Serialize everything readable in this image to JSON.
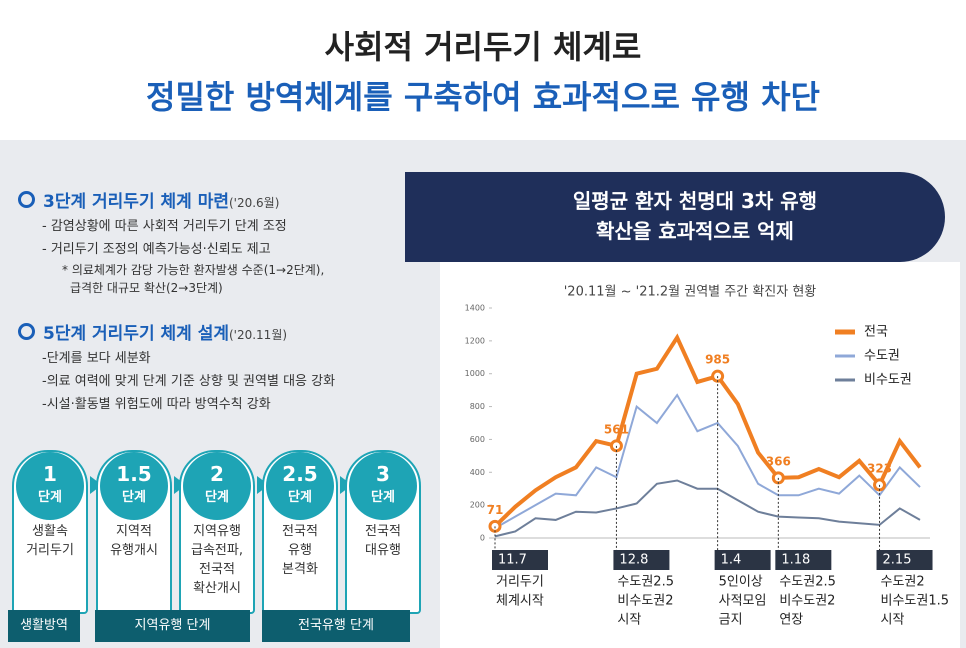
{
  "header": {
    "title": "사회적 거리두기 체계로",
    "subtitle": "정밀한 방역체계를 구축하여 효과적으로 유행 차단"
  },
  "sections": [
    {
      "heading": "3단계 거리두기 체계 마련",
      "date": "('20.6월)",
      "items": [
        "-  감염상황에 따른 사회적 거리두기 단계 조정",
        "-  거리두기 조정의 예측가능성·신뢰도 제고"
      ],
      "notes": [
        "* 의료체계가 감당 가능한 환자발생 수준(1→2단계),",
        "급격한 대규모 확산(2→3단계)"
      ]
    },
    {
      "heading": "5단계 거리두기 체계 설계",
      "date": "('20.11월)",
      "items": [
        "-단계를 보다 세분화",
        "-의료 여력에 맞게 단계 기준 상향 및 권역별 대응 강화",
        "-시설·활동별 위험도에 따라 방역수칙 강화"
      ],
      "notes": []
    }
  ],
  "steps": [
    {
      "level": "1",
      "unit": "단계",
      "desc": [
        "생활속",
        "거리두기"
      ]
    },
    {
      "level": "1.5",
      "unit": "단계",
      "desc": [
        "지역적",
        "유행개시"
      ]
    },
    {
      "level": "2",
      "unit": "단계",
      "desc": [
        "지역유행",
        "급속전파,",
        "전국적",
        "확산개시"
      ]
    },
    {
      "level": "2.5",
      "unit": "단계",
      "desc": [
        "전국적",
        "유행",
        "본격화"
      ]
    },
    {
      "level": "3",
      "unit": "단계",
      "desc": [
        "전국적",
        "대유행"
      ]
    }
  ],
  "phases": [
    "생활방역",
    "지역유행 단계",
    "전국유행 단계"
  ],
  "banner": [
    "일평균 환자 천명대 3차 유행",
    "확산을 효과적으로 억제"
  ],
  "chart_data": {
    "type": "line",
    "title": "'20.11월 ~ '21.2월 권역별 주간 확진자 현황",
    "categories": [
      "11.7",
      null,
      null,
      null,
      null,
      null,
      "12.8",
      null,
      null,
      null,
      null,
      "1.4",
      null,
      null,
      "1.18",
      null,
      null,
      null,
      null,
      "2.15",
      null,
      null
    ],
    "event_labels": [
      [
        "거리두기",
        "체계시작"
      ],
      null,
      null,
      null,
      null,
      null,
      [
        "수도권2.5",
        "비수도권2",
        "시작"
      ],
      null,
      null,
      null,
      null,
      [
        "5인이상",
        "사적모임",
        "금지"
      ],
      null,
      null,
      [
        "수도권2.5",
        "비수도권2",
        "연장"
      ],
      null,
      null,
      null,
      null,
      [
        "수도권2",
        "비수도권1.5",
        "시작"
      ],
      null,
      null
    ],
    "series": [
      {
        "name": "전국",
        "color": "#f07f22",
        "values": [
          71,
          190,
          290,
          370,
          430,
          590,
          561,
          1000,
          1030,
          1220,
          950,
          985,
          815,
          520,
          366,
          370,
          420,
          370,
          470,
          323,
          590,
          430
        ]
      },
      {
        "name": "수도권",
        "color": "#8fa8d8",
        "values": [
          60,
          130,
          200,
          270,
          260,
          430,
          370,
          800,
          700,
          870,
          650,
          700,
          560,
          330,
          260,
          260,
          300,
          270,
          380,
          260,
          430,
          310
        ]
      },
      {
        "name": "비수도권",
        "color": "#6e7f9a",
        "values": [
          10,
          40,
          120,
          110,
          160,
          155,
          180,
          210,
          330,
          350,
          300,
          300,
          230,
          160,
          130,
          125,
          120,
          100,
          90,
          80,
          180,
          110
        ]
      }
    ],
    "ylim": [
      0,
      1400
    ],
    "yticks": [
      0,
      200,
      400,
      600,
      800,
      1000,
      1200,
      1400
    ],
    "legend": "upper right"
  }
}
